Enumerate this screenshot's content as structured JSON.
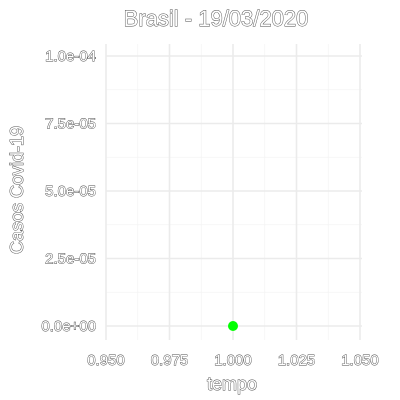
{
  "chart_data": {
    "type": "scatter",
    "title": "Brasil - 19/03/2020",
    "xlabel": "tempo",
    "ylabel": "Casos Covid-19",
    "xlim": [
      0.95,
      1.05
    ],
    "ylim": [
      0,
      0.0001
    ],
    "x_ticks": [
      "0.950",
      "0.975",
      "1.000",
      "1.025",
      "1.050"
    ],
    "x_tick_values": [
      0.95,
      0.975,
      1.0,
      1.025,
      1.05
    ],
    "y_ticks": [
      "0.0e+00",
      "2.5e-05",
      "5.0e-05",
      "7.5e-05",
      "1.0e-04"
    ],
    "y_tick_values": [
      0,
      2.5e-05,
      5e-05,
      7.5e-05,
      0.0001
    ],
    "grid": true,
    "legend": "none",
    "point_color": "#00ff00",
    "points": [
      {
        "x": 1.0,
        "y": 0
      }
    ]
  }
}
